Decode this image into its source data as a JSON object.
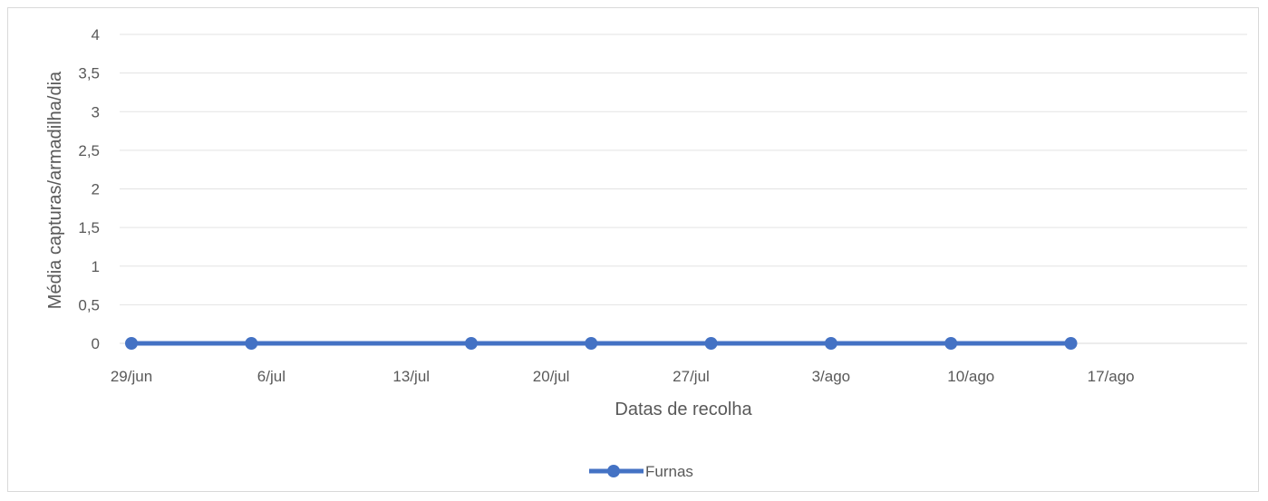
{
  "chart_data": {
    "type": "line",
    "title": "",
    "xlabel": "Datas de recolha",
    "ylabel": "Média capturas/armadilha/dia",
    "ylim": [
      0,
      4
    ],
    "y_ticks": [
      "0",
      "0,5",
      "1",
      "1,5",
      "2",
      "2,5",
      "3",
      "3,5",
      "4"
    ],
    "x_tick_labels": [
      "29/jun",
      "6/jul",
      "13/jul",
      "20/jul",
      "27/jul",
      "3/ago",
      "10/ago",
      "17/ago"
    ],
    "x_axis_type": "date",
    "x_range": [
      "2020-06-29",
      "2020-08-24"
    ],
    "x_tick_dates": [
      "2020-06-29",
      "2020-07-06",
      "2020-07-13",
      "2020-07-20",
      "2020-07-27",
      "2020-08-03",
      "2020-08-10",
      "2020-08-17"
    ],
    "grid": "horizontal",
    "legend_position": "bottom",
    "series": [
      {
        "name": "Furnas",
        "color": "#4472c4",
        "marker": "circle",
        "x": [
          "2020-06-29",
          "2020-07-05",
          "2020-07-16",
          "2020-07-22",
          "2020-07-28",
          "2020-08-03",
          "2020-08-09",
          "2020-08-15"
        ],
        "values": [
          0,
          0,
          0,
          0,
          0,
          0,
          0,
          0
        ]
      }
    ]
  }
}
